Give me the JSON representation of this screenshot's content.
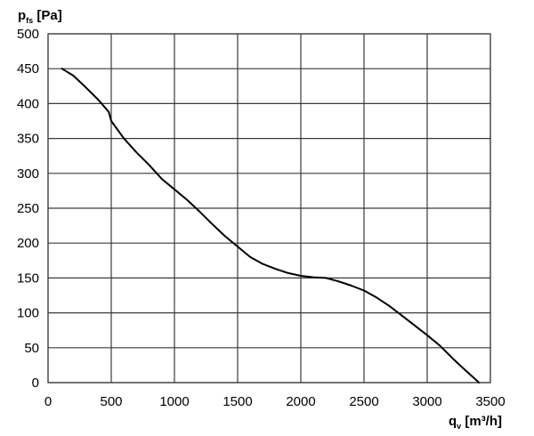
{
  "chart_data": {
    "type": "line",
    "title": "",
    "xlabel": {
      "main": "q",
      "sub": "v",
      "unit": " [m³/h]"
    },
    "ylabel": {
      "main": "p",
      "sub": "fs",
      "unit": " [Pa]"
    },
    "xlim": [
      0,
      3500
    ],
    "ylim": [
      0,
      500
    ],
    "xticks": [
      0,
      500,
      1000,
      1500,
      2000,
      2500,
      3000,
      3500
    ],
    "yticks": [
      0,
      50,
      100,
      150,
      200,
      250,
      300,
      350,
      400,
      450,
      500
    ],
    "grid": true,
    "legend": "none",
    "series": [
      {
        "color": "#000000",
        "x": [
          110,
          200,
          300,
          400,
          480,
          500,
          600,
          700,
          800,
          900,
          1000,
          1100,
          1200,
          1300,
          1400,
          1500,
          1600,
          1700,
          1800,
          1900,
          2000,
          2100,
          2200,
          2300,
          2400,
          2500,
          2600,
          2700,
          2800,
          2900,
          3000,
          3100,
          3200,
          3300,
          3380,
          3410
        ],
        "y": [
          450,
          440,
          423,
          405,
          388,
          375,
          350,
          330,
          312,
          292,
          277,
          262,
          245,
          227,
          210,
          195,
          180,
          170,
          163,
          157,
          153,
          151,
          150,
          145,
          139,
          132,
          122,
          110,
          96,
          82,
          68,
          53,
          35,
          18,
          5,
          0
        ]
      }
    ]
  }
}
